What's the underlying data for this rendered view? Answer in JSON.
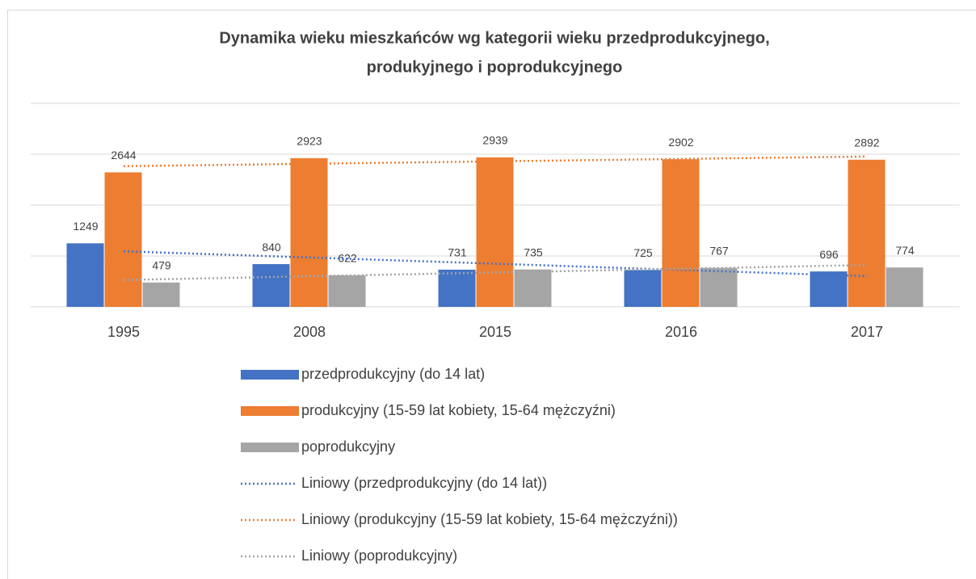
{
  "chart_data": {
    "type": "bar",
    "title": [
      "Dynamika wieku mieszkańców wg kategorii wieku przedprodukcyjnego,",
      "produkyjnego i poprodukcyjnego"
    ],
    "categories": [
      "1995",
      "2008",
      "2015",
      "2016",
      "2017"
    ],
    "series": [
      {
        "name": "przedprodukcyjny (do 14 lat)",
        "color": "#4472c4",
        "values": [
          1249,
          840,
          731,
          725,
          696
        ],
        "trendline": "Liniowy (przedprodukcyjny (do 14 lat))"
      },
      {
        "name": "produkcyjny (15-59 lat kobiety, 15-64 mężczyźni)",
        "color": "#ed7d31",
        "values": [
          2644,
          2923,
          2939,
          2902,
          2892
        ],
        "trendline": "Liniowy (produkcyjny (15-59 lat kobiety, 15-64 mężczyźni))"
      },
      {
        "name": "poprodukcyjny",
        "color": "#a5a5a5",
        "values": [
          479,
          622,
          735,
          767,
          774
        ],
        "trendline": "Liniowy (poprodukcyjny)"
      }
    ],
    "ylim": [
      0,
      4000
    ],
    "yticks": [
      0,
      1000,
      2000,
      3000,
      4000
    ],
    "grid": true,
    "legend": "bottom"
  }
}
